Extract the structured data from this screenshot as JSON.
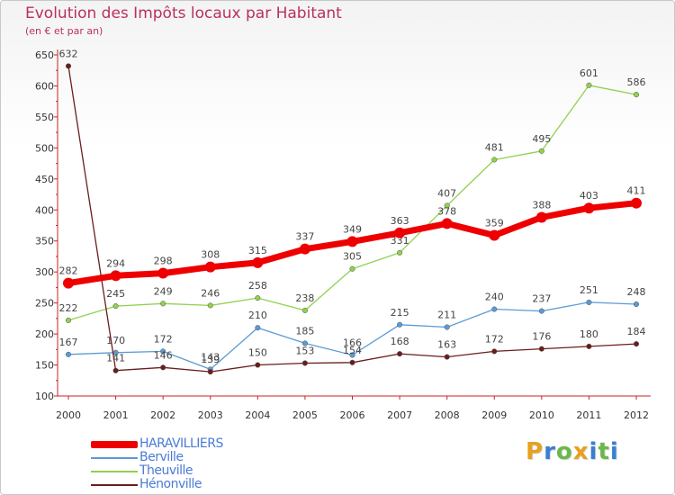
{
  "header": {
    "title": "Evolution des Impôts locaux par Habitant",
    "subtitle": "(en € et par an)"
  },
  "brand": {
    "letters": [
      "P",
      "r",
      "o",
      "x",
      "i",
      "t",
      "i"
    ],
    "colors": [
      "#e8a020",
      "#3a7fd0",
      "#6ab84a",
      "#e8a020",
      "#3a7fd0",
      "#6ab84a",
      "#3a7fd0"
    ]
  },
  "colors": {
    "background": "#ffffff",
    "title": "#b8325c",
    "grid_axis": "#cc2222"
  },
  "chart_data": {
    "type": "line",
    "title": "Evolution des Impôts locaux par Habitant",
    "subtitle": "(en € et par an)",
    "xlabel": "",
    "ylabel": "",
    "x": [
      "2000",
      "2001",
      "2002",
      "2003",
      "2004",
      "2005",
      "2006",
      "2007",
      "2008",
      "2009",
      "2010",
      "2011",
      "2012"
    ],
    "ylim": [
      100,
      650
    ],
    "yticks": [
      100,
      150,
      200,
      250,
      300,
      350,
      400,
      450,
      500,
      550,
      600,
      650
    ],
    "grid": false,
    "legend_position": "bottom-left",
    "series": [
      {
        "name": "HARAVILLIERS",
        "color": "#ee0000",
        "values": [
          282,
          294,
          298,
          308,
          315,
          337,
          349,
          363,
          378,
          359,
          388,
          403,
          411
        ]
      },
      {
        "name": "Berville",
        "color": "#5b9bd5",
        "values": [
          167,
          170,
          172,
          143,
          210,
          185,
          166,
          215,
          211,
          240,
          237,
          251,
          248
        ]
      },
      {
        "name": "Theuville",
        "color": "#92d050",
        "values": [
          222,
          245,
          249,
          246,
          258,
          238,
          305,
          331,
          407,
          481,
          495,
          601,
          586
        ]
      },
      {
        "name": "Hénonville",
        "color": "#6b1d1d",
        "values": [
          632,
          141,
          146,
          139,
          150,
          153,
          154,
          168,
          163,
          172,
          176,
          180,
          184
        ]
      }
    ]
  }
}
